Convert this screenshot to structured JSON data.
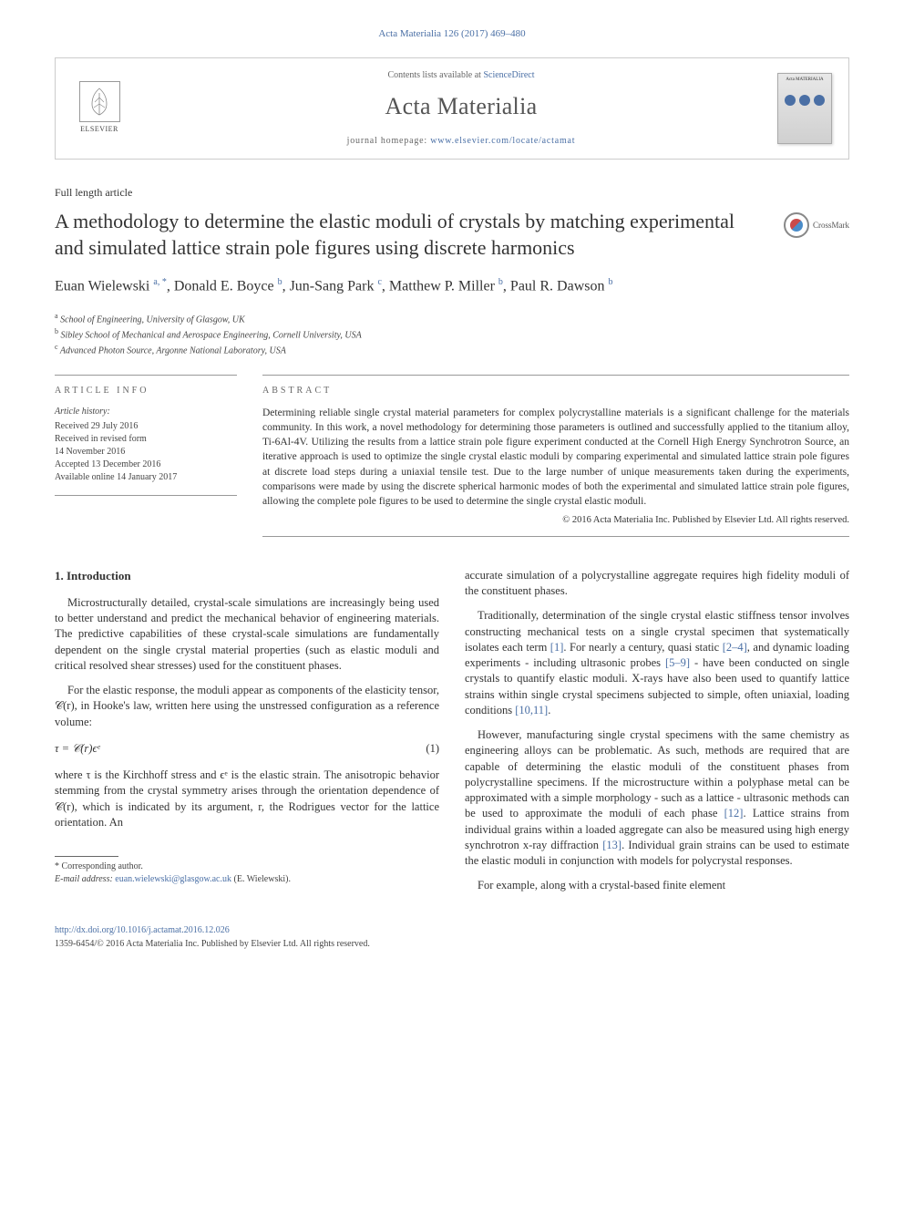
{
  "header": {
    "citation": "Acta Materialia 126 (2017) 469–480"
  },
  "banner": {
    "elsevier_label": "ELSEVIER",
    "contents_prefix": "Contents lists available at ",
    "contents_link": "ScienceDirect",
    "journal_name": "Acta Materialia",
    "homepage_prefix": "journal homepage: ",
    "homepage_url": "www.elsevier.com/locate/actamat",
    "cover_text": "Acta MATERIALIA"
  },
  "article": {
    "type": "Full length article",
    "title": "A methodology to determine the elastic moduli of crystals by matching experimental and simulated lattice strain pole figures using discrete harmonics",
    "crossmark_label": "CrossMark"
  },
  "authors_html": "Euan Wielewski <sup>a, *</sup>, Donald E. Boyce <sup>b</sup>, Jun-Sang Park <sup>c</sup>, Matthew P. Miller <sup>b</sup>, Paul R. Dawson <sup>b</sup>",
  "affiliations": [
    {
      "sup": "a",
      "text": "School of Engineering, University of Glasgow, UK"
    },
    {
      "sup": "b",
      "text": "Sibley School of Mechanical and Aerospace Engineering, Cornell University, USA"
    },
    {
      "sup": "c",
      "text": "Advanced Photon Source, Argonne National Laboratory, USA"
    }
  ],
  "info": {
    "section_label": "ARTICLE INFO",
    "history_label": "Article history:",
    "history": [
      "Received 29 July 2016",
      "Received in revised form",
      "14 November 2016",
      "Accepted 13 December 2016",
      "Available online 14 January 2017"
    ]
  },
  "abstract": {
    "section_label": "ABSTRACT",
    "text": "Determining reliable single crystal material parameters for complex polycrystalline materials is a significant challenge for the materials community. In this work, a novel methodology for determining those parameters is outlined and successfully applied to the titanium alloy, Ti-6Al-4V. Utilizing the results from a lattice strain pole figure experiment conducted at the Cornell High Energy Synchrotron Source, an iterative approach is used to optimize the single crystal elastic moduli by comparing experimental and simulated lattice strain pole figures at discrete load steps during a uniaxial tensile test. Due to the large number of unique measurements taken during the experiments, comparisons were made by using the discrete spherical harmonic modes of both the experimental and simulated lattice strain pole figures, allowing the complete pole figures to be used to determine the single crystal elastic moduli.",
    "copyright": "© 2016 Acta Materialia Inc. Published by Elsevier Ltd. All rights reserved."
  },
  "body": {
    "intro_heading": "1. Introduction",
    "left_paragraphs": [
      "Microstructurally detailed, crystal-scale simulations are increasingly being used to better understand and predict the mechanical behavior of engineering materials. The predictive capabilities of these crystal-scale simulations are fundamentally dependent on the single crystal material properties (such as elastic moduli and critical resolved shear stresses) used for the constituent phases.",
      "For the elastic response, the moduli appear as components of the elasticity tensor, 𝒞(r), in Hooke's law, written here using the unstressed configuration as a reference volume:"
    ],
    "equation": {
      "expr": "τ = 𝒞(r)ϵᵉ",
      "num": "(1)"
    },
    "left_after_eq": "where τ is the Kirchhoff stress and ϵᵉ is the elastic strain. The anisotropic behavior stemming from the crystal symmetry arises through the orientation dependence of 𝒞(r), which is indicated by its argument, r, the Rodrigues vector for the lattice orientation. An",
    "right_paragraphs": [
      "accurate simulation of a polycrystalline aggregate requires high fidelity moduli of the constituent phases.",
      "Traditionally, determination of the single crystal elastic stiffness tensor involves constructing mechanical tests on a single crystal specimen that systematically isolates each term [1]. For nearly a century, quasi static [2–4], and dynamic loading experiments - including ultrasonic probes [5–9] - have been conducted on single crystals to quantify elastic moduli. X-rays have also been used to quantify lattice strains within single crystal specimens subjected to simple, often uniaxial, loading conditions [10,11].",
      "However, manufacturing single crystal specimens with the same chemistry as engineering alloys can be problematic. As such, methods are required that are capable of determining the elastic moduli of the constituent phases from polycrystalline specimens. If the microstructure within a polyphase metal can be approximated with a simple morphology - such as a lattice - ultrasonic methods can be used to approximate the moduli of each phase [12]. Lattice strains from individual grains within a loaded aggregate can also be measured using high energy synchrotron x-ray diffraction [13]. Individual grain strains can be used to estimate the elastic moduli in conjunction with models for polycrystal responses.",
      "For example, along with a crystal-based finite element"
    ],
    "refs": {
      "r1": "[1]",
      "r2": "[2–4]",
      "r3": "[5–9]",
      "r4": "[10,11]",
      "r5": "[12]",
      "r6": "[13]"
    }
  },
  "footnote": {
    "corr_label": "* Corresponding author.",
    "email_label": "E-mail address: ",
    "email": "euan.wielewski@glasgow.ac.uk",
    "email_suffix": " (E. Wielewski)."
  },
  "footer": {
    "doi": "http://dx.doi.org/10.1016/j.actamat.2016.12.026",
    "issn_line": "1359-6454/© 2016 Acta Materialia Inc. Published by Elsevier Ltd. All rights reserved."
  },
  "colors": {
    "link": "#4a6fa5",
    "text": "#333333",
    "muted": "#666666",
    "border": "#999999"
  }
}
